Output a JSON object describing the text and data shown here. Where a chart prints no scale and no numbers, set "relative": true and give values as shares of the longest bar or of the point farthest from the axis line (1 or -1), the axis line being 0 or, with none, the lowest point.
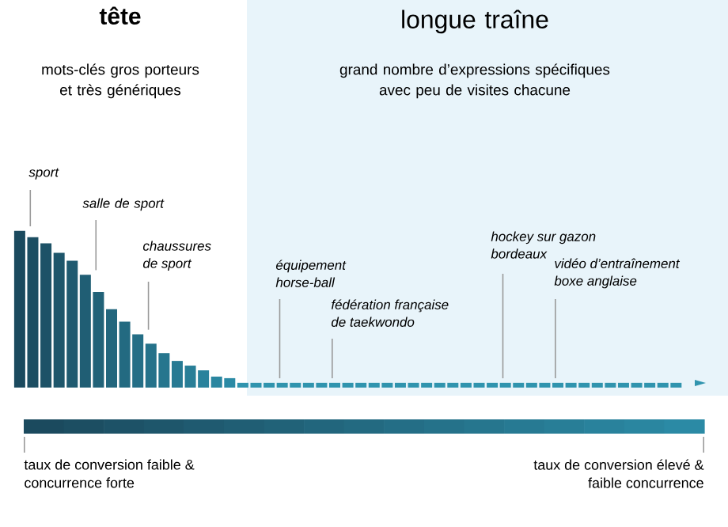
{
  "chart_data": {
    "type": "bar",
    "relative": true,
    "categories": [
      null,
      null,
      null,
      null,
      null,
      null,
      null,
      null,
      null,
      null,
      null,
      null,
      null,
      null,
      null,
      null,
      null,
      null,
      null,
      null,
      null,
      null,
      null,
      null,
      null,
      null,
      null,
      null,
      null,
      null,
      null,
      null,
      null,
      null,
      null,
      null,
      null,
      null,
      null,
      null,
      null,
      null,
      null,
      null,
      null,
      null,
      null,
      null,
      null,
      null,
      null
    ],
    "values": [
      1,
      0.96,
      0.92,
      0.86,
      0.81,
      0.72,
      0.61,
      0.5,
      0.42,
      0.34,
      0.28,
      0.22,
      0.17,
      0.14,
      0.11,
      0.07,
      0.06,
      0.03,
      0.03,
      0.03,
      0.03,
      0.03,
      0.03,
      0.03,
      0.03,
      0.03,
      0.03,
      0.03,
      0.03,
      0.03,
      0.03,
      0.03,
      0.03,
      0.03,
      0.03,
      0.03,
      0.03,
      0.03,
      0.03,
      0.03,
      0.03,
      0.03,
      0.03,
      0.03,
      0.03,
      0.03,
      0.03,
      0.03,
      0.03,
      0.03,
      0.03
    ],
    "colors": [
      "#1b4a5e",
      "#1c4e62",
      "#1d5267",
      "#1e566b",
      "#1f5a70",
      "#205e74",
      "#216278",
      "#22667d",
      "#236a81",
      "#246e86",
      "#25728a",
      "#26768e",
      "#277a93",
      "#287e97",
      "#29829c",
      "#2a86a0",
      "#2b8aa5",
      "#3094ae",
      "#3094ae",
      "#3094ae",
      "#3094ae",
      "#3094ae",
      "#3094ae",
      "#3094ae",
      "#3094ae",
      "#3094ae",
      "#3094ae",
      "#3094ae",
      "#3094ae",
      "#3094ae",
      "#3094ae",
      "#3094ae",
      "#3094ae",
      "#3094ae",
      "#3094ae",
      "#3094ae",
      "#3094ae",
      "#3094ae",
      "#3094ae",
      "#3094ae",
      "#3094ae",
      "#3094ae",
      "#3094ae",
      "#3094ae",
      "#3094ae",
      "#3094ae",
      "#3094ae",
      "#3094ae",
      "#3094ae",
      "#3094ae",
      "#3094ae"
    ],
    "annotations": [
      "tête",
      "mots-clés gros porteurs et très génériques",
      "grand nombre d’expressions spécifiques avec peu de visites chacune",
      "sport",
      "salle de sport",
      "chaussures de sport",
      "équipement horse-ball",
      "fédération française de taekwondo",
      "hockey sur gazon bordeaux",
      "vidéo d’entraînement boxe anglaise",
      "taux de conversion faible & concurrence forte",
      "taux de conversion élevé & faible concurrence",
      "longue traîne"
    ]
  }
}
